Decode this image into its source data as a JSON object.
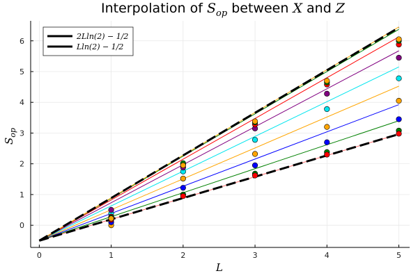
{
  "chart_data": {
    "type": "scatter",
    "title": {
      "prefix": "Interpolation of ",
      "s": "S",
      "s_sub": "op",
      "middle": " between ",
      "x": "X",
      "and": " and ",
      "z": "Z"
    },
    "xlabel": "L",
    "ylabel": {
      "s": "S",
      "sub": "op"
    },
    "xlim": [
      -0.12,
      5.15
    ],
    "ylim": [
      -0.72,
      6.65
    ],
    "xticks": [
      0,
      1,
      2,
      3,
      4,
      5
    ],
    "yticks": [
      0,
      1,
      2,
      3,
      4,
      5,
      6
    ],
    "grid": true,
    "legend_position": "top-left",
    "reference_lines": [
      {
        "name": "2L ln(2) − 1/2",
        "label": "2Lln(2) − 1/2",
        "slope": 1.386,
        "intercept": -0.5,
        "color": "#000000",
        "dash": true
      },
      {
        "name": "L ln(2) − 1/2",
        "label": "Lln(2) − 1/2",
        "slope": 0.693,
        "intercept": -0.5,
        "color": "#000000",
        "dash": true
      }
    ],
    "fit_lines": [
      {
        "color": "#ff6a6a",
        "slope": 0.693,
        "intercept": -0.5
      },
      {
        "color": "#008000",
        "slope": 0.78,
        "intercept": -0.5
      },
      {
        "color": "#0000ff",
        "slope": 0.885,
        "intercept": -0.5
      },
      {
        "color": "#ffa500",
        "slope": 1.005,
        "intercept": -0.5
      },
      {
        "color": "#00e5ee",
        "slope": 1.13,
        "intercept": -0.5
      },
      {
        "color": "#800080",
        "slope": 1.235,
        "intercept": -0.5
      },
      {
        "color": "#ff0000",
        "slope": 1.325,
        "intercept": -0.5
      },
      {
        "color": "#008000",
        "slope": 1.375,
        "intercept": -0.5
      },
      {
        "color": "#ffa500",
        "slope": 1.39,
        "intercept": -0.5
      }
    ],
    "x": [
      1,
      2,
      3,
      4,
      5
    ],
    "series": [
      {
        "color": "#ffa500",
        "values": [
          0.0,
          1.52,
          2.32,
          3.2,
          4.05
        ]
      },
      {
        "color": "#0000ff",
        "values": [
          0.1,
          1.22,
          1.95,
          2.7,
          3.45
        ]
      },
      {
        "color": "#008000",
        "values": [
          0.2,
          1.0,
          1.68,
          2.38,
          3.08
        ]
      },
      {
        "color": "#ff0000",
        "values": [
          0.18,
          0.95,
          1.62,
          2.3,
          2.98
        ]
      },
      {
        "color": "#00e5ee",
        "values": [
          0.38,
          1.75,
          2.78,
          3.78,
          4.78
        ]
      },
      {
        "color": "#800080",
        "values": [
          0.5,
          1.88,
          3.15,
          4.28,
          5.45
        ]
      },
      {
        "color": "#ff0000",
        "values": [
          0.28,
          1.98,
          3.28,
          4.58,
          5.88
        ]
      },
      {
        "color": "#008000",
        "values": [
          0.25,
          2.02,
          3.35,
          4.65,
          6.0
        ]
      },
      {
        "color": "#ffa500",
        "values": [
          0.22,
          1.95,
          3.38,
          4.7,
          6.05
        ]
      }
    ]
  }
}
